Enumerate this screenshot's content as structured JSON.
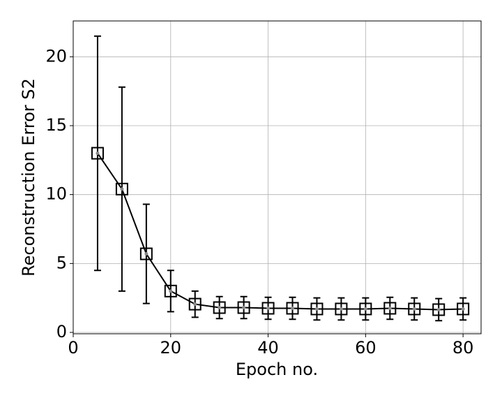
{
  "chart_data": {
    "type": "errorbar-line",
    "x_label": "Epoch no.",
    "y_label": "Reconstruction Error S2",
    "x": [
      5,
      10,
      15,
      20,
      25,
      30,
      35,
      40,
      45,
      50,
      55,
      60,
      65,
      70,
      75,
      80
    ],
    "values": [
      13.0,
      10.4,
      5.7,
      3.0,
      2.05,
      1.8,
      1.8,
      1.75,
      1.75,
      1.7,
      1.7,
      1.7,
      1.75,
      1.7,
      1.65,
      1.7
    ],
    "errors": [
      8.5,
      7.4,
      3.6,
      1.5,
      0.95,
      0.8,
      0.8,
      0.8,
      0.8,
      0.8,
      0.8,
      0.8,
      0.8,
      0.8,
      0.8,
      0.8
    ],
    "color": "#000000",
    "xlim": [
      0,
      83.7
    ],
    "ylim": [
      -0.1,
      22.6
    ],
    "xticks": [
      0,
      20,
      40,
      60,
      80
    ],
    "yticks": [
      0,
      5,
      10,
      15,
      20
    ],
    "grid": true
  }
}
